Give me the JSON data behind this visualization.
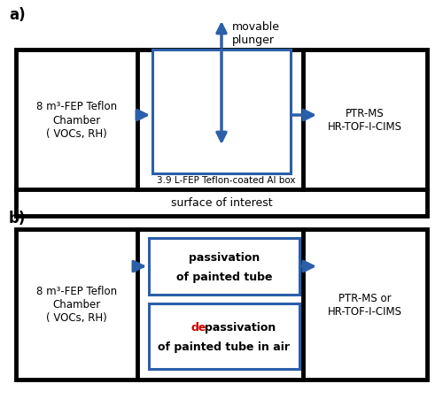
{
  "bg_color": "#ffffff",
  "blue": "#2b5faa",
  "red": "#cc0000",
  "black": "#000000",
  "fig_label_a": "a)",
  "fig_label_b": "b)",
  "panel_a": {
    "left_cell_text": "8 m³-FEP Teflon\nChamber\n( VOCs, RH)",
    "right_cell_text": "PTR-MS\nHR-TOF-I-CIMS",
    "surface_text": "surface of interest",
    "inner_box_label": "3.9 L-FEP Teflon-coated Al box",
    "movable_plunger_text": "movable\nplunger"
  },
  "panel_b": {
    "left_cell_text": "8 m³-FEP Teflon\nChamber\n( VOCs, RH)",
    "right_cell_text": "PTR-MS or\nHR-TOF-I-CIMS",
    "upper_box_text1": "passivation",
    "upper_box_text2": "of painted tube",
    "lower_box_text_de": "de",
    "lower_box_text_rest": "passivation",
    "lower_box_text2": "of painted tube in air"
  }
}
